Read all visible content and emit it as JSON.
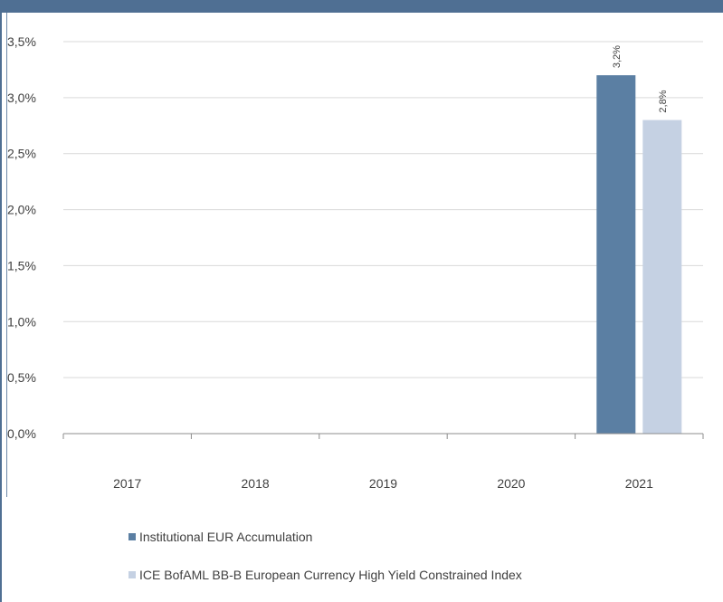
{
  "chart_data": {
    "type": "bar",
    "categories": [
      "2017",
      "2018",
      "2019",
      "2020",
      "2021"
    ],
    "series": [
      {
        "name": "Institutional EUR Accumulation",
        "values": [
          null,
          null,
          null,
          null,
          3.2
        ],
        "labels": [
          "",
          "",
          "",
          "",
          "3,2%"
        ],
        "color": "#5b7fa3"
      },
      {
        "name": "ICE BofAML BB-B European Currency High Yield Constrained Index",
        "values": [
          null,
          null,
          null,
          null,
          2.8
        ],
        "labels": [
          "",
          "",
          "",
          "",
          "2,8%"
        ],
        "color": "#c5d1e3"
      }
    ],
    "yticks": [
      "0,0%",
      "0,5%",
      "1,0%",
      "1,5%",
      "2,0%",
      "2,5%",
      "3,0%",
      "3,5%"
    ],
    "ylim": [
      0,
      3.5
    ],
    "grid": true,
    "legend_position": "bottom",
    "title": "",
    "xlabel": "",
    "ylabel": ""
  }
}
